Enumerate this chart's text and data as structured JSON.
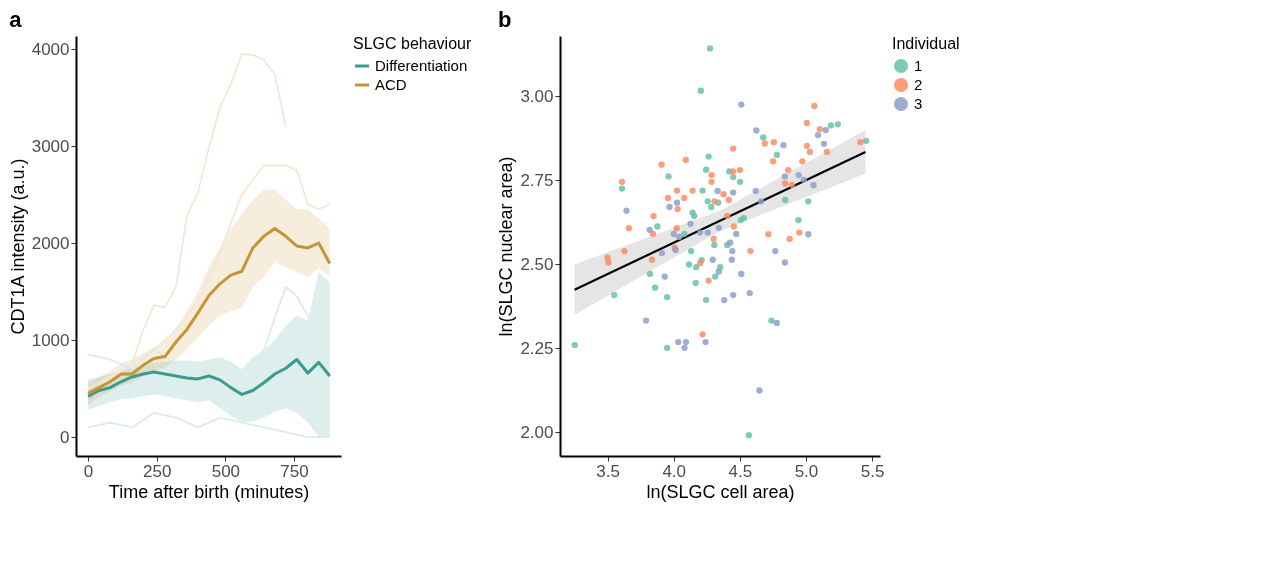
{
  "chart_data": [
    {
      "type": "line",
      "title": "a",
      "xlabel": "Time after birth (minutes)",
      "ylabel": "CDT1A intensity (a.u.)",
      "legend_title": "SLGC behaviour",
      "legend": "right",
      "grid": false,
      "xlim": [
        -44,
        921
      ],
      "ylim": [
        -195,
        4135
      ],
      "xticks": [
        0,
        250,
        500,
        750
      ],
      "yticks": [
        0,
        1000,
        2000,
        3000,
        4000
      ],
      "x": [
        0,
        40,
        80,
        120,
        160,
        200,
        240,
        280,
        320,
        360,
        400,
        440,
        480,
        520,
        560,
        600,
        640,
        680,
        720,
        760,
        800,
        840,
        880
      ],
      "series": [
        {
          "color": "#f3e8d6",
          "x": [
            0,
            40,
            80,
            120,
            160,
            200,
            240,
            280,
            320,
            360,
            400,
            440,
            480,
            520,
            560,
            600,
            640,
            680,
            720
          ],
          "values": [
            500,
            560,
            620,
            680,
            750,
            1100,
            1360,
            1340,
            1550,
            2280,
            2520,
            2980,
            3400,
            3640,
            3950,
            3940,
            3890,
            3740,
            3200
          ]
        },
        {
          "color": "#f3e8d6",
          "x": [
            0,
            80,
            160,
            240,
            320,
            400,
            480,
            560,
            640,
            720,
            760,
            800,
            840,
            880
          ],
          "values": [
            450,
            600,
            750,
            900,
            1100,
            1400,
            1900,
            2500,
            2800,
            2800,
            2750,
            2400,
            2350,
            2400
          ]
        },
        {
          "color": "#dbebe8",
          "x": [
            0,
            80,
            160,
            240,
            320,
            400,
            480,
            560,
            640,
            720,
            800,
            880
          ],
          "values": [
            100,
            150,
            100,
            250,
            200,
            100,
            200,
            150,
            100,
            50,
            0,
            0
          ]
        },
        {
          "color": "#dbebe8",
          "x": [
            0,
            80,
            160,
            240,
            320,
            400,
            480,
            560,
            640,
            720,
            760,
            800,
            880
          ],
          "values": [
            850,
            800,
            700,
            900,
            750,
            650,
            700,
            450,
            900,
            1550,
            1450,
            1250,
            1000
          ]
        },
        {
          "name": "Differentiation",
          "color": "#3a9b8f",
          "values": [
            420,
            480,
            510,
            570,
            620,
            650,
            670,
            650,
            630,
            610,
            600,
            630,
            590,
            510,
            440,
            480,
            560,
            650,
            710,
            800,
            660,
            770,
            630
          ],
          "lower": [
            280,
            320,
            360,
            390,
            400,
            420,
            440,
            420,
            400,
            380,
            360,
            380,
            300,
            220,
            150,
            160,
            200,
            260,
            300,
            250,
            150,
            0,
            0
          ],
          "upper": [
            600,
            620,
            650,
            680,
            710,
            740,
            770,
            780,
            790,
            790,
            780,
            800,
            820,
            780,
            700,
            820,
            900,
            1000,
            1150,
            1250,
            1200,
            1700,
            1600
          ]
        },
        {
          "name": "ACD",
          "color": "#c79434",
          "values": [
            450,
            510,
            570,
            650,
            650,
            740,
            810,
            830,
            980,
            1110,
            1280,
            1460,
            1580,
            1670,
            1710,
            1950,
            2070,
            2150,
            2070,
            1970,
            1950,
            2000,
            1790
          ],
          "lower": [
            330,
            410,
            470,
            530,
            560,
            620,
            680,
            720,
            800,
            900,
            1030,
            1150,
            1250,
            1300,
            1330,
            1550,
            1650,
            1800,
            1750,
            1700,
            1650,
            1750,
            1650
          ],
          "upper": [
            560,
            620,
            680,
            760,
            800,
            860,
            930,
            1000,
            1130,
            1300,
            1500,
            1750,
            1950,
            2150,
            2300,
            2450,
            2550,
            2550,
            2450,
            2350,
            2350,
            2250,
            2150
          ]
        }
      ]
    },
    {
      "type": "scatter",
      "title": "b",
      "xlabel": "ln(SLGC cell area)",
      "ylabel": "ln(SLGC nuclear area)",
      "legend_title": "Individual",
      "legend": "right",
      "grid": false,
      "marker": "circle",
      "xlim": [
        3.14,
        5.56
      ],
      "ylim": [
        1.93,
        3.18
      ],
      "xticks": [
        3.5,
        {
          "value": 4,
          "label": "4.0"
        },
        4.5,
        {
          "value": 5,
          "label": "5.0"
        },
        5.5
      ],
      "yticks": [
        {
          "value": 2,
          "label": "2.00"
        },
        2.25,
        {
          "value": 2.5,
          "label": "2.50"
        },
        2.75,
        {
          "value": 3,
          "label": "3.00"
        }
      ],
      "series": [
        {
          "name": "1",
          "color": "#66c2a5",
          "x": [
            4.275,
            4.205,
            5.189,
            5.241,
            4.677,
            5.455,
            4.78,
            4.264,
            4.245,
            4.42,
            4.45,
            4.502,
            3.961,
            3.609,
            4.218,
            4.257,
            4.336,
            4.284,
            4.843,
            5.018,
            4.143,
            4.155,
            4.53,
            4.507,
            4.943,
            3.877,
            4.08,
            4.307,
            4.405,
            4.132,
            4.211,
            4.116,
            4.17,
            4.352,
            3.82,
            4.314,
            3.859,
            4.166,
            3.55,
            3.95,
            4.245,
            4.739,
            3.252,
            3.95,
            4.568
          ],
          "values": [
            3.143,
            3.017,
            2.914,
            2.917,
            2.878,
            2.868,
            2.826,
            2.821,
            2.782,
            2.777,
            2.76,
            2.746,
            2.762,
            2.726,
            2.72,
            2.688,
            2.684,
            2.671,
            2.692,
            2.688,
            2.654,
            2.644,
            2.638,
            2.632,
            2.632,
            2.613,
            2.591,
            2.558,
            2.558,
            2.54,
            2.513,
            2.5,
            2.492,
            2.492,
            2.472,
            2.464,
            2.431,
            2.445,
            2.409,
            2.403,
            2.394,
            2.333,
            2.26,
            2.252,
            1.992
          ]
        },
        {
          "name": "2",
          "color": "#fc8d62",
          "x": [
            5.064,
            5.007,
            5.105,
            4.689,
            4.757,
            5.007,
            5.411,
            4.45,
            5.03,
            5.159,
            3.909,
            4.091,
            4.752,
            4.973,
            4.286,
            4.45,
            4.502,
            4.866,
            3.609,
            4.286,
            4.843,
            4.893,
            4.025,
            4.143,
            4.377,
            4.416,
            3.957,
            4.08,
            4.309,
            4.03,
            3.848,
            4.405,
            3.661,
            4.023,
            4.455,
            3.843,
            4.716,
            4.95,
            4.877,
            4.302,
            4.007,
            3.627,
            4.58,
            3.836,
            3.5,
            3.507,
            4.2,
            4.264,
            4.218
          ],
          "values": [
            2.972,
            2.921,
            2.903,
            2.86,
            2.864,
            2.853,
            2.864,
            2.845,
            2.835,
            2.835,
            2.797,
            2.811,
            2.807,
            2.807,
            2.766,
            2.777,
            2.781,
            2.781,
            2.746,
            2.746,
            2.741,
            2.737,
            2.72,
            2.72,
            2.709,
            2.692,
            2.698,
            2.698,
            2.688,
            2.665,
            2.644,
            2.644,
            2.608,
            2.608,
            2.613,
            2.591,
            2.59,
            2.595,
            2.576,
            2.576,
            2.55,
            2.54,
            2.54,
            2.514,
            2.52,
            2.506,
            2.504,
            2.452,
            2.292
          ]
        },
        {
          "name": "3",
          "color": "#8da0cb",
          "x": [
            4.511,
            5.15,
            4.625,
            5.091,
            4.83,
            5.136,
            4.841,
            4.945,
            4.984,
            5.057,
            4.332,
            4.45,
            4.62,
            4.025,
            3.968,
            4.661,
            3.643,
            4.127,
            4.341,
            3.818,
            4.0,
            4.041,
            4.2,
            4.257,
            4.473,
            5.018,
            4.427,
            4.014,
            3.911,
            4.443,
            4.768,
            4.295,
            4.439,
            4.841,
            4.341,
            4.511,
            3.932,
            4.382,
            4.45,
            4.575,
            3.791,
            4.78,
            4.034,
            4.093,
            4.082,
            4.241,
            4.648
          ],
          "values": [
            2.976,
            2.9,
            2.899,
            2.885,
            2.855,
            2.859,
            2.762,
            2.766,
            2.752,
            2.736,
            2.719,
            2.714,
            2.719,
            2.684,
            2.671,
            2.688,
            2.66,
            2.621,
            2.609,
            2.603,
            2.591,
            2.582,
            2.595,
            2.595,
            2.591,
            2.59,
            2.565,
            2.543,
            2.534,
            2.54,
            2.54,
            2.514,
            2.514,
            2.506,
            2.479,
            2.472,
            2.464,
            2.394,
            2.409,
            2.415,
            2.333,
            2.326,
            2.269,
            2.269,
            2.252,
            2.269,
            2.125
          ]
        },
        {
          "type": "line",
          "marker": "none",
          "color": "#000000",
          "x": [
            3.25,
            4.35,
            5.45
          ],
          "values": [
            2.425,
            2.63,
            2.835
          ],
          "lower": [
            2.35,
            2.6,
            2.77
          ],
          "upper": [
            2.5,
            2.66,
            2.9
          ]
        }
      ]
    }
  ]
}
